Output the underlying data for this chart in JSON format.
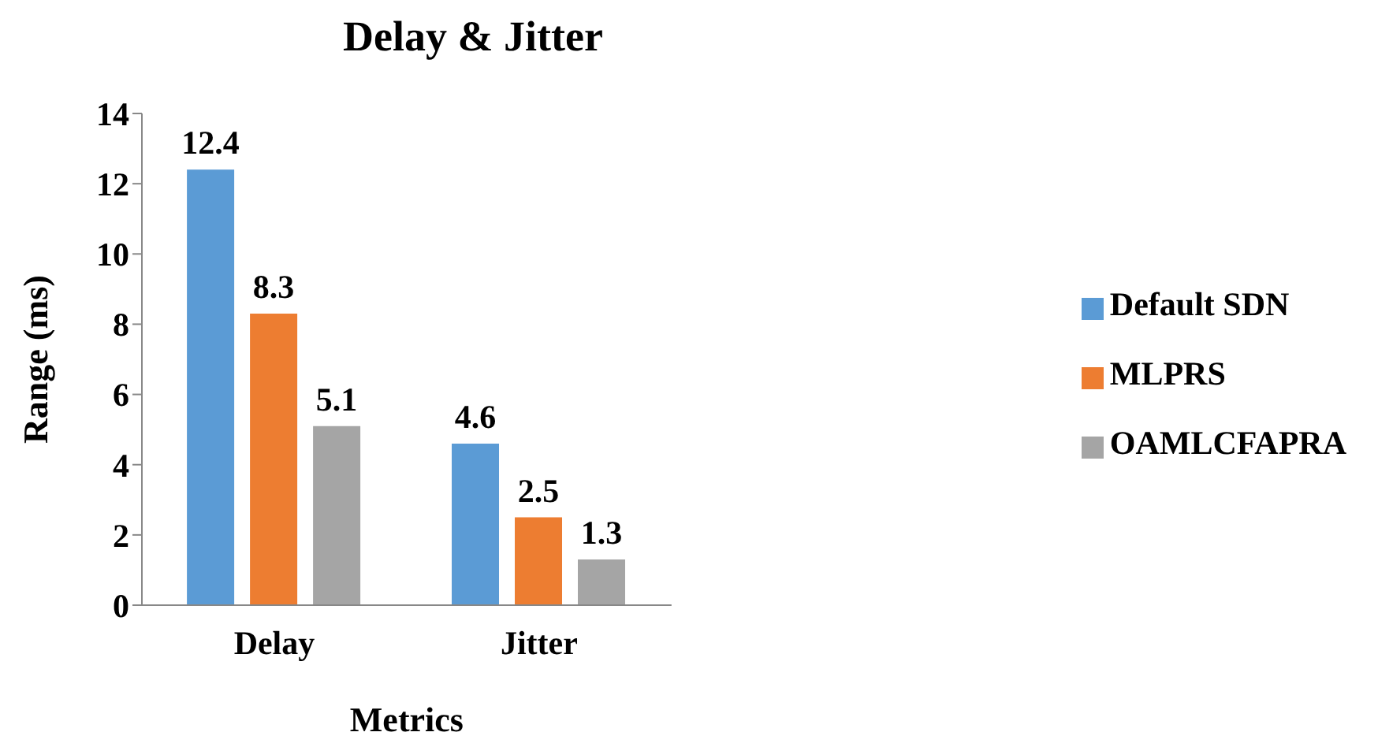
{
  "chart_data": {
    "type": "bar",
    "title": "Delay & Jitter",
    "xlabel": "Metrics",
    "ylabel": "Range (ms)",
    "categories": [
      "Delay",
      "Jitter"
    ],
    "series": [
      {
        "name": "Default SDN",
        "color": "#5b9bd5",
        "values": [
          12.4,
          4.6
        ]
      },
      {
        "name": "MLPRS",
        "color": "#ed7d31",
        "values": [
          8.3,
          2.5
        ]
      },
      {
        "name": "OAMLCFAPRA",
        "color": "#a5a5a5",
        "values": [
          5.1,
          1.3
        ]
      }
    ],
    "ylim": [
      0,
      14
    ],
    "yticks": [
      0,
      2,
      4,
      6,
      8,
      10,
      12,
      14
    ],
    "data_labels": true,
    "legend": "right",
    "grid": false
  }
}
